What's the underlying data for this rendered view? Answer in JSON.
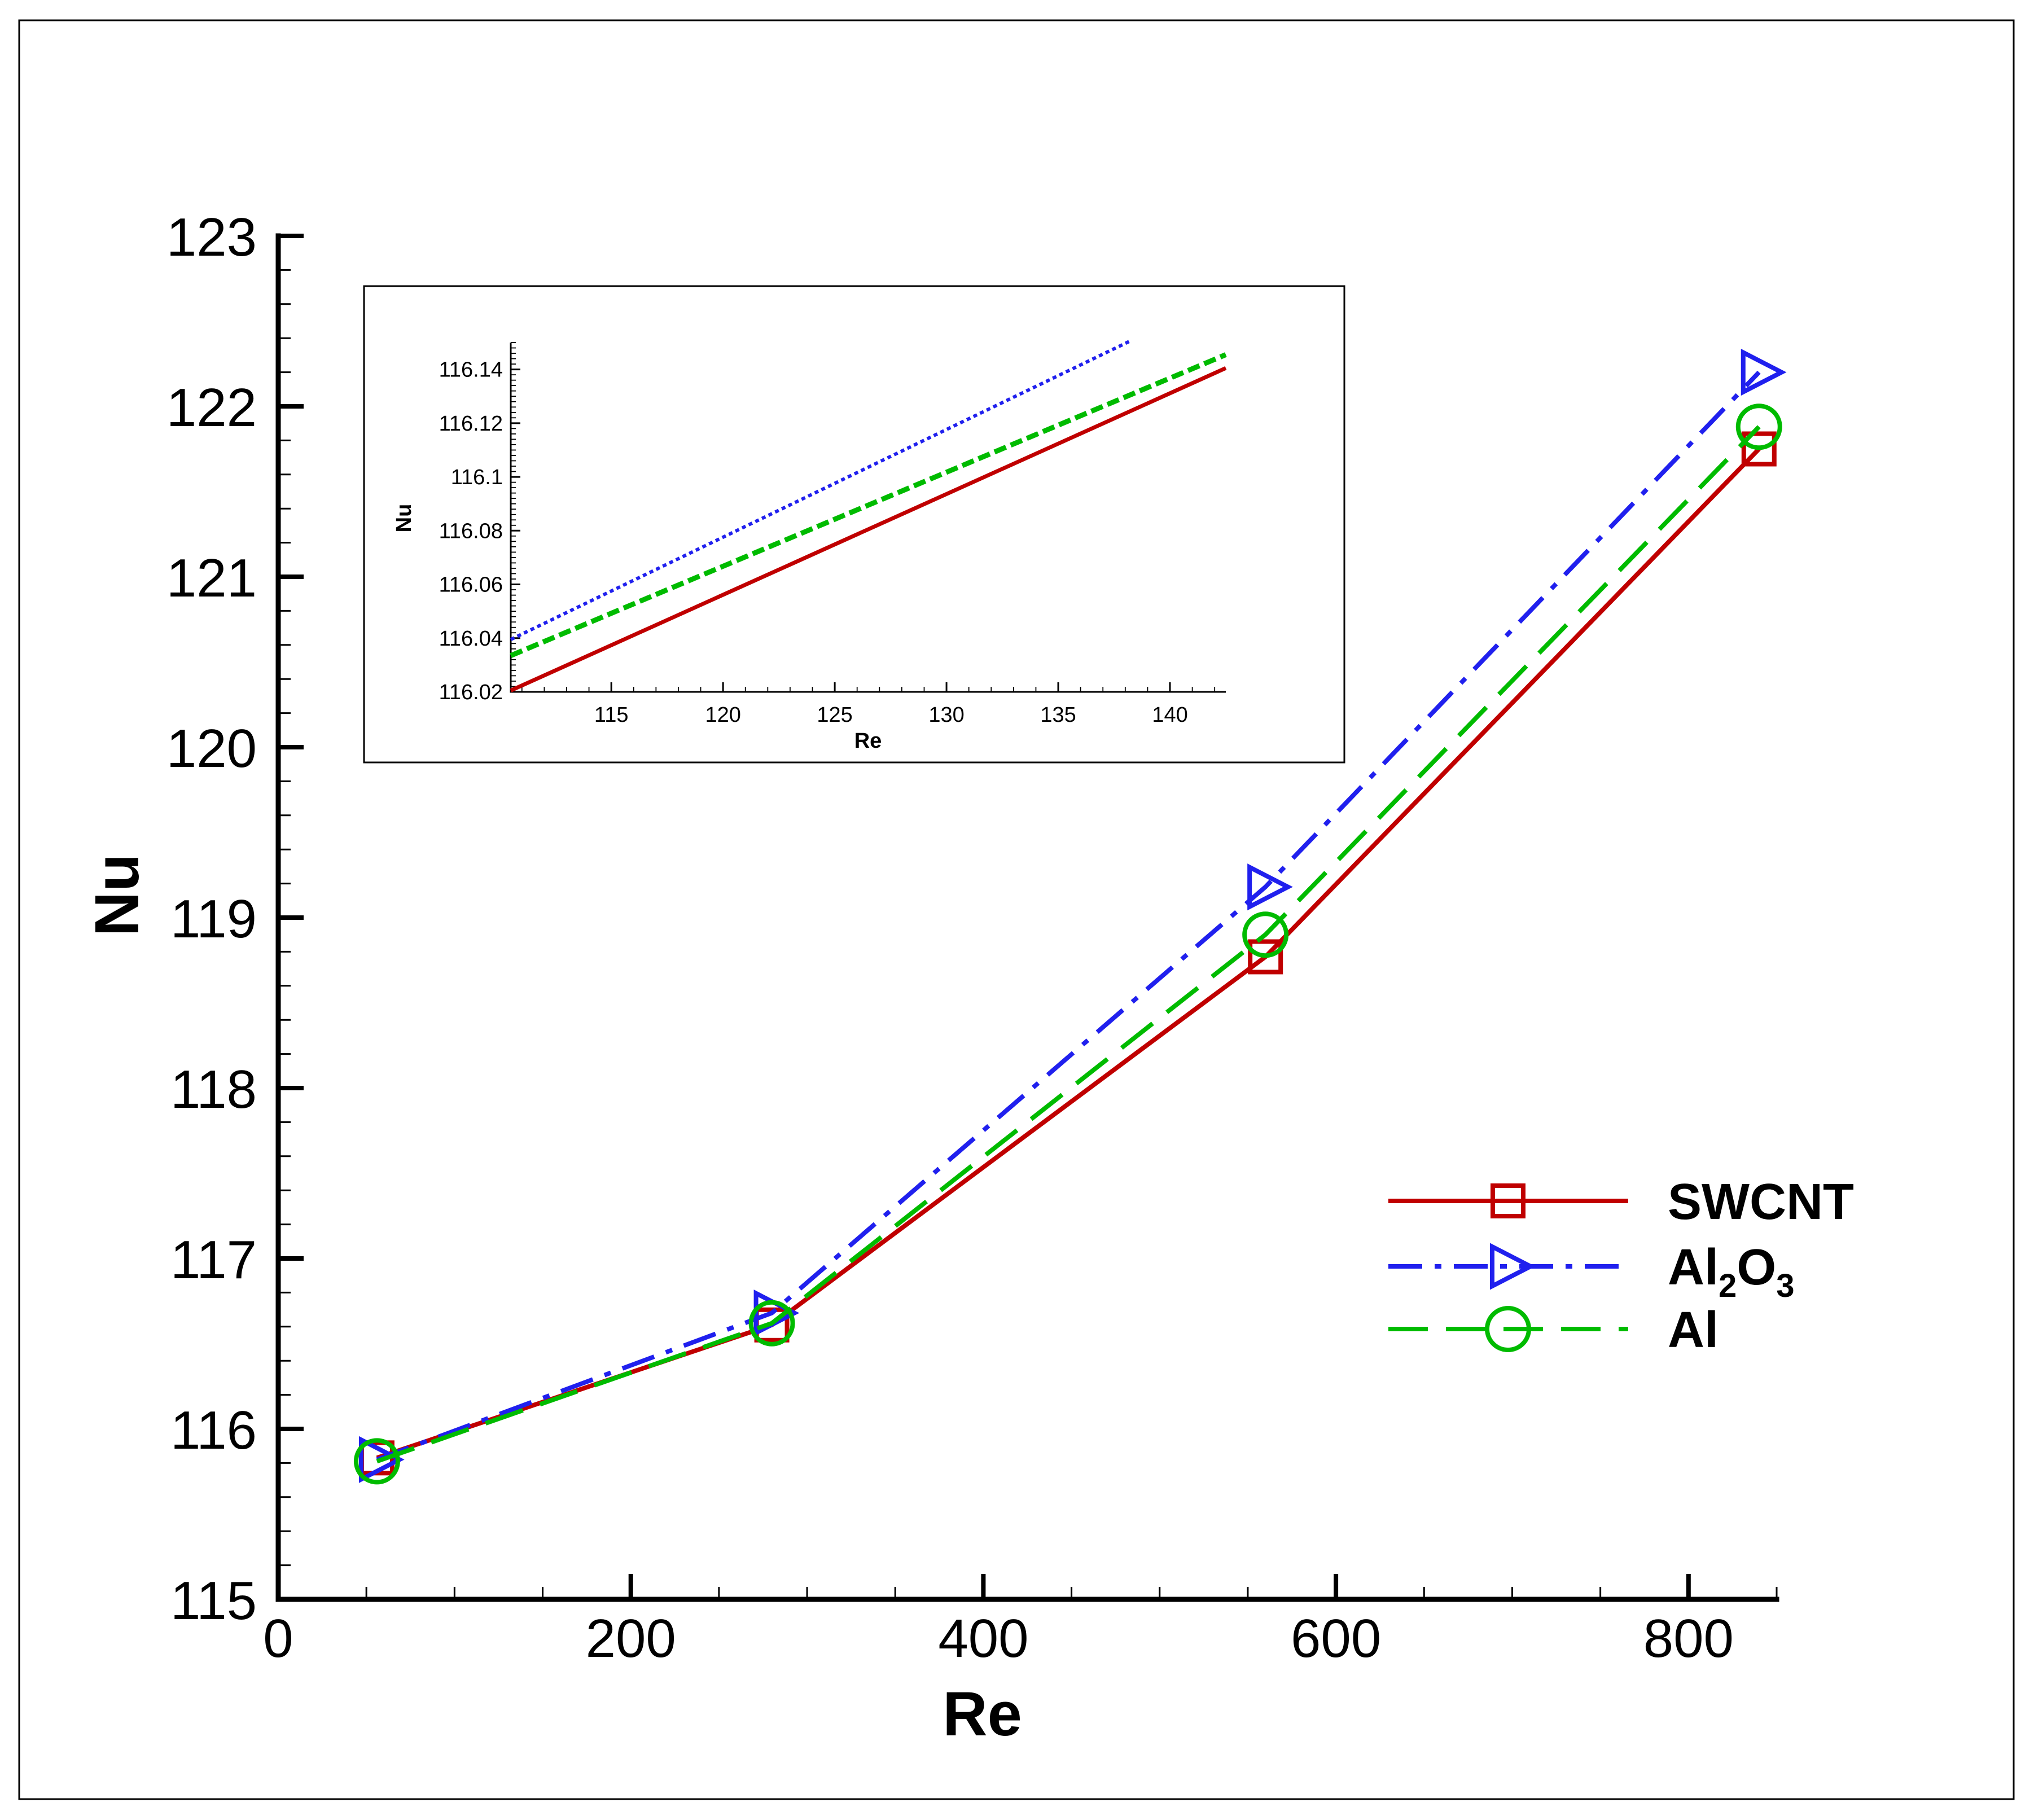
{
  "chart_data": [
    {
      "type": "line",
      "xlabel": "Re",
      "ylabel": "Nu",
      "xlim": [
        0,
        850
      ],
      "ylim": [
        115,
        123
      ],
      "xticks": [
        "0",
        "200",
        "400",
        "600",
        "800"
      ],
      "yticks": [
        "115",
        "116",
        "117",
        "118",
        "119",
        "120",
        "121",
        "122",
        "123"
      ],
      "legend_position": "right",
      "series": [
        {
          "name": "SWCNT",
          "sub": "",
          "after": "",
          "color": "#c00000",
          "marker": "square",
          "dash": "solid",
          "x": [
            56,
            280,
            560,
            840
          ],
          "y": [
            115.83,
            116.61,
            118.77,
            121.75
          ]
        },
        {
          "name": "Al",
          "sub": "2",
          "after": "O",
          "sub2": "3",
          "color": "#2020ee",
          "marker": "triangle-right",
          "dash": "dashdot",
          "x": [
            56,
            280,
            560,
            840
          ],
          "y": [
            115.82,
            116.68,
            119.18,
            122.2
          ]
        },
        {
          "name": "Al",
          "sub": "",
          "after": "",
          "color": "#00bb00",
          "marker": "circle",
          "dash": "dashed",
          "x": [
            56,
            280,
            560,
            840
          ],
          "y": [
            115.81,
            116.62,
            118.9,
            121.88
          ]
        }
      ]
    },
    {
      "type": "line",
      "xlabel": "Re",
      "ylabel": "Nu",
      "xlim": [
        110.5,
        142.5
      ],
      "ylim": [
        116.02,
        116.15
      ],
      "xticks": [
        "115",
        "120",
        "125",
        "130",
        "135",
        "140"
      ],
      "yticks": [
        "116.02",
        "116.04",
        "116.06",
        "116.08",
        "116.1",
        "116.12",
        "116.14"
      ],
      "series": [
        {
          "name": "SWCNT",
          "color": "#c00000",
          "dash": "solid",
          "x": [
            110.5,
            142.5
          ],
          "y": [
            116.0205,
            116.1405
          ]
        },
        {
          "name": "Al2O3",
          "color": "#2020ee",
          "dash": "dotted",
          "x": [
            110.5,
            138.2
          ],
          "y": [
            116.0395,
            116.1505
          ]
        },
        {
          "name": "Al",
          "color": "#00bb00",
          "dash": "dashed",
          "x": [
            110.5,
            142.5
          ],
          "y": [
            116.0335,
            116.1455
          ]
        }
      ]
    }
  ]
}
